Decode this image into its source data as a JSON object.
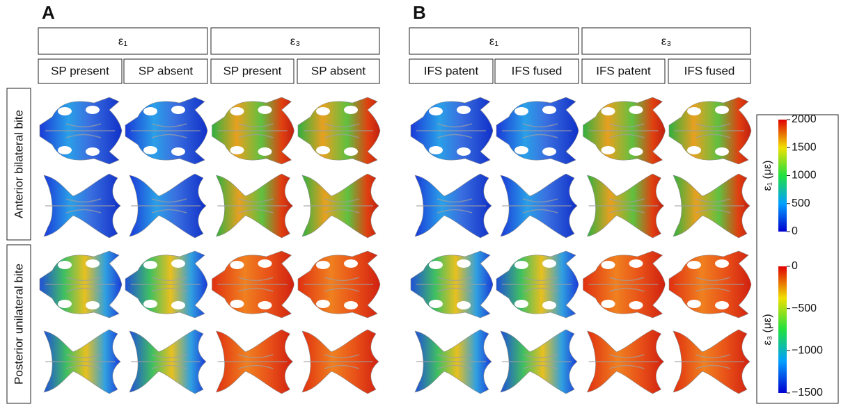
{
  "panels": [
    {
      "label": "A",
      "groups": [
        {
          "label": "ε₁",
          "columns": [
            "SP present",
            "SP absent"
          ]
        },
        {
          "label": "ε₃",
          "columns": [
            "SP present",
            "SP absent"
          ]
        }
      ]
    },
    {
      "label": "B",
      "groups": [
        {
          "label": "ε₁",
          "columns": [
            "IFS patent",
            "IFS fused"
          ]
        },
        {
          "label": "ε₃",
          "columns": [
            "IFS patent",
            "IFS fused"
          ]
        }
      ]
    }
  ],
  "row_labels": [
    "Anterior bilateral bite",
    "Posterior unilateral bite"
  ],
  "colorbars": [
    {
      "label": "ε₁ (με)",
      "ticks": [
        "2000",
        "1500",
        "1000",
        "500",
        "0"
      ]
    },
    {
      "label": "ε₃ (με)",
      "ticks": [
        "0",
        "−500",
        "−1000",
        "−1500"
      ]
    }
  ]
}
